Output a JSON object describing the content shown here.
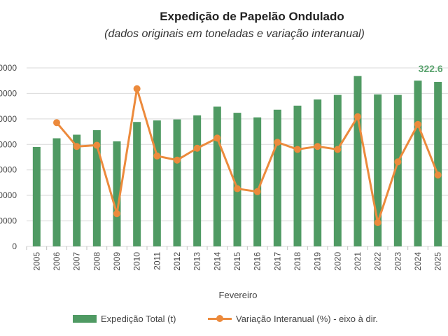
{
  "chart_data": {
    "type": "bar",
    "title": "Expedição de Papelão Ondulado",
    "subtitle": "(dados originais em toneladas e variação interanual)",
    "xlabel": "Fevereiro",
    "categories": [
      "2005",
      "2006",
      "2007",
      "2008",
      "2009",
      "2010",
      "2011",
      "2012",
      "2013",
      "2014",
      "2015",
      "2016",
      "2017",
      "2018",
      "2019",
      "2020",
      "2021",
      "2022",
      "2023",
      "2024",
      "2025"
    ],
    "y_tick_labels": [
      "0000",
      "0000",
      "0000",
      "0000",
      "0000",
      "0000",
      "0000",
      "0"
    ],
    "ylim": [
      0,
      350000
    ],
    "y_right_lim": [
      -15,
      15
    ],
    "grid": true,
    "legend_position": "bottom",
    "series": [
      {
        "name": "Expedição Total (t)",
        "type": "bar",
        "axis": "left",
        "color": "#4f9a63",
        "values": [
          195000,
          212000,
          219000,
          228000,
          206000,
          244000,
          247000,
          249000,
          257000,
          274000,
          262000,
          253000,
          268000,
          276000,
          288000,
          297000,
          334000,
          298000,
          297000,
          325000,
          322600
        ]
      },
      {
        "name": "Variação Interanual (%) - eixo à dir.",
        "type": "line",
        "axis": "right",
        "color": "#ec8a3c",
        "values": [
          null,
          5.8,
          1.8,
          2.0,
          -9.5,
          11.5,
          0.2,
          -0.5,
          1.5,
          3.2,
          -5.3,
          -5.8,
          2.5,
          1.3,
          1.8,
          1.3,
          6.8,
          -11.0,
          -0.8,
          5.5,
          -3.0
        ]
      }
    ],
    "annotations": [
      {
        "text": "322.6",
        "category": "2025",
        "color": "#5aa36e"
      }
    ]
  }
}
